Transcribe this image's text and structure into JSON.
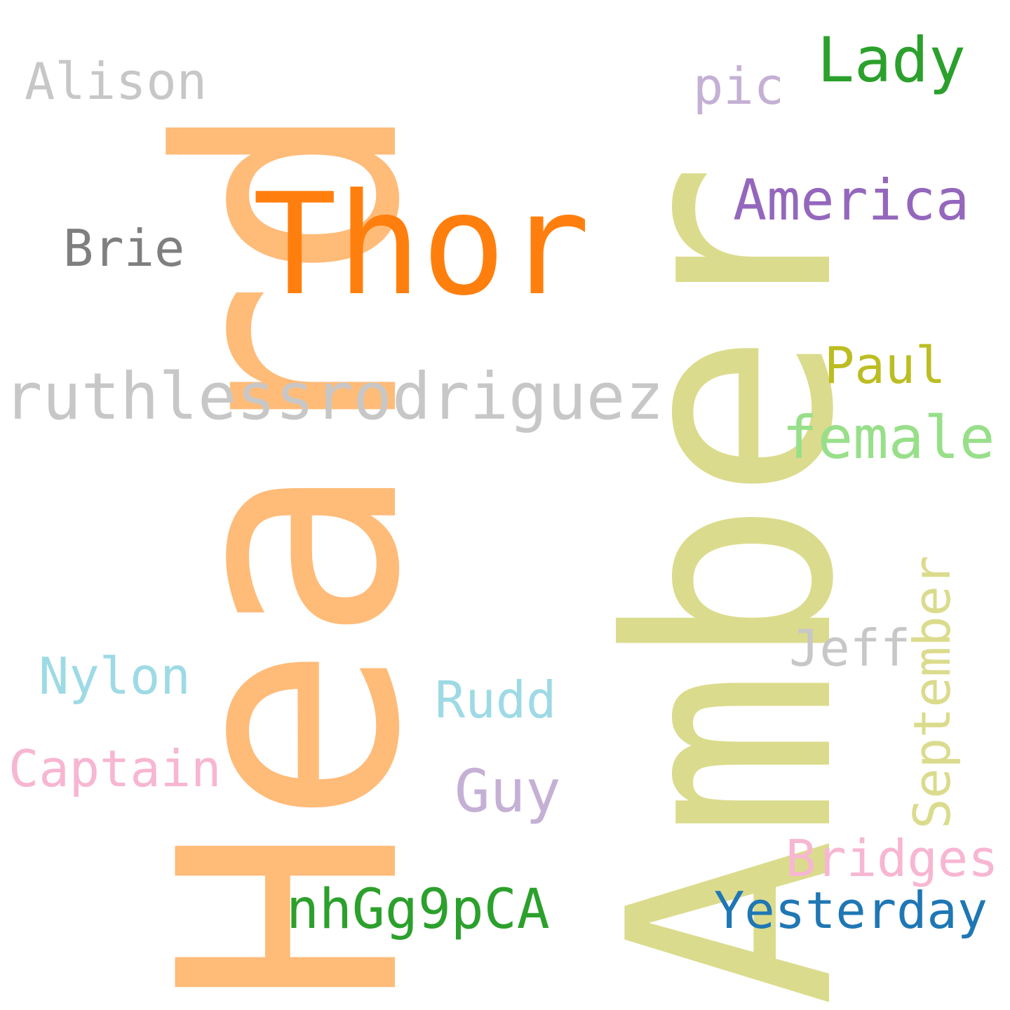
{
  "words": {
    "heard": {
      "text": "Heard",
      "color": "#ffbb78"
    },
    "amber": {
      "text": "Amber",
      "color": "#dbdb8d"
    },
    "thor": {
      "text": "Thor",
      "color": "#ff7f0e"
    },
    "ruthlessrodriguez": {
      "text": "ruthlessrodriguez",
      "color": "#c7c7c7"
    },
    "alison": {
      "text": "Alison",
      "color": "#c7c7c7"
    },
    "brie": {
      "text": "Brie",
      "color": "#7f7f7f"
    },
    "pic": {
      "text": "pic",
      "color": "#c5b0d5"
    },
    "lady": {
      "text": "Lady",
      "color": "#2ca02c"
    },
    "america": {
      "text": "America",
      "color": "#9467bd"
    },
    "paul": {
      "text": "Paul",
      "color": "#bcbd22"
    },
    "female": {
      "text": "female",
      "color": "#98df8a"
    },
    "jeff": {
      "text": "Jeff",
      "color": "#c7c7c7"
    },
    "september": {
      "text": "September",
      "color": "#dbdb8d"
    },
    "nylon": {
      "text": "Nylon",
      "color": "#9edae5"
    },
    "rudd": {
      "text": "Rudd",
      "color": "#9edae5"
    },
    "captain": {
      "text": "Captain",
      "color": "#f7b6d2"
    },
    "guy": {
      "text": "Guy",
      "color": "#c5b0d5"
    },
    "bridges": {
      "text": "Bridges",
      "color": "#f7b6d2"
    },
    "yesterday": {
      "text": "Yesterday",
      "color": "#1f77b4"
    },
    "nhgg9pca": {
      "text": "nhGg9pCA",
      "color": "#2ca02c"
    }
  }
}
